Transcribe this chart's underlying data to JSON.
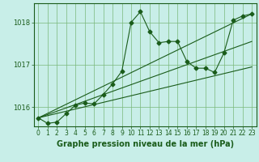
{
  "title": "Graphe pression niveau de la mer (hPa)",
  "bg_color": "#c8eee8",
  "grid_color": "#7ab87a",
  "line_color": "#1a5c1a",
  "xlim": [
    -0.5,
    23.5
  ],
  "ylim": [
    1015.55,
    1018.45
  ],
  "yticks": [
    1016,
    1017,
    1018
  ],
  "xticks": [
    0,
    1,
    2,
    3,
    4,
    5,
    6,
    7,
    8,
    9,
    10,
    11,
    12,
    13,
    14,
    15,
    16,
    17,
    18,
    19,
    20,
    21,
    22,
    23
  ],
  "series_main": {
    "x": [
      0,
      1,
      2,
      3,
      4,
      5,
      6,
      7,
      8,
      9,
      10,
      11,
      12,
      13,
      14,
      15,
      16,
      17,
      18,
      19,
      20,
      21,
      22,
      23
    ],
    "y": [
      1015.75,
      1015.62,
      1015.65,
      1015.85,
      1016.05,
      1016.1,
      1016.08,
      1016.3,
      1016.55,
      1016.85,
      1018.0,
      1018.25,
      1017.78,
      1017.52,
      1017.55,
      1017.55,
      1017.08,
      1016.92,
      1016.92,
      1016.82,
      1017.28,
      1018.05,
      1018.15,
      1018.2
    ]
  },
  "trend_lines": [
    {
      "x0": 0,
      "y0": 1015.75,
      "x1": 23,
      "y1": 1018.2
    },
    {
      "x0": 0,
      "y0": 1015.75,
      "x1": 23,
      "y1": 1017.55
    },
    {
      "x0": 0,
      "y0": 1015.75,
      "x1": 23,
      "y1": 1016.95
    }
  ],
  "tick_fontsize": 5.5,
  "title_fontsize": 7.0,
  "title_fontweight": "bold"
}
